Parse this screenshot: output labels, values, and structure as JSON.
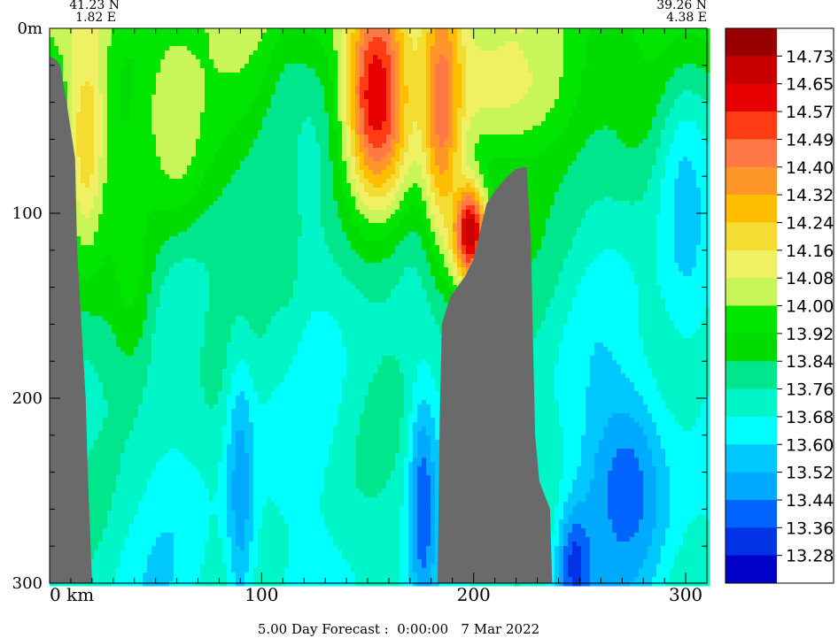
{
  "chart_data": {
    "type": "heatmap",
    "title": "",
    "xlabel": "",
    "ylabel": "",
    "xlim": [
      0,
      310
    ],
    "ylim": [
      300,
      0
    ],
    "x_ticks": [
      0,
      100,
      200,
      300
    ],
    "x_tick_labels": [
      "0 km",
      "100",
      "200",
      "300"
    ],
    "y_ticks": [
      0,
      100,
      200,
      300
    ],
    "y_tick_labels": [
      "0m",
      "100",
      "200",
      "300"
    ],
    "x_minor_step": 10,
    "y_minor_step": 20,
    "left_end": {
      "lat": "41.23 N",
      "lon": "1.82 E"
    },
    "right_end": {
      "lat": "39.26 N",
      "lon": "4.38 E"
    },
    "footer": "5.00 Day Forecast :  0:00:00   7 Mar 2022",
    "colorbar": {
      "labels": [
        "14.73",
        "14.65",
        "14.57",
        "14.49",
        "14.40",
        "14.32",
        "14.24",
        "14.16",
        "14.08",
        "14.00",
        "13.92",
        "13.84",
        "13.76",
        "13.68",
        "13.60",
        "13.52",
        "13.44",
        "13.36",
        "13.28"
      ],
      "colors": [
        "#990000",
        "#c80000",
        "#e60000",
        "#ff3c14",
        "#ff7846",
        "#ff9628",
        "#ffbe00",
        "#f5dc32",
        "#f0f064",
        "#c8f55a",
        "#00e600",
        "#00dc00",
        "#00e68c",
        "#00f5c8",
        "#00ffff",
        "#00c8ff",
        "#00aaff",
        "#0064ff",
        "#0032e6",
        "#0000c8"
      ]
    },
    "land_color": "#6a6a6a",
    "land_left": [
      [
        0,
        15
      ],
      [
        3,
        17
      ],
      [
        5,
        20
      ],
      [
        8,
        40
      ],
      [
        12,
        70
      ],
      [
        13,
        120
      ],
      [
        15,
        160
      ],
      [
        17,
        200
      ],
      [
        18,
        240
      ],
      [
        19,
        270
      ],
      [
        20,
        300
      ]
    ],
    "land_right": [
      [
        183,
        300
      ],
      [
        184,
        210
      ],
      [
        185,
        160
      ],
      [
        189,
        145
      ],
      [
        196,
        134
      ],
      [
        200,
        125
      ],
      [
        204,
        105
      ],
      [
        206,
        95
      ],
      [
        210,
        88
      ],
      [
        216,
        80
      ],
      [
        220,
        76
      ],
      [
        225,
        75
      ],
      [
        227,
        115
      ],
      [
        228,
        170
      ],
      [
        229,
        220
      ],
      [
        231,
        245
      ],
      [
        236,
        260
      ],
      [
        237,
        300
      ]
    ],
    "hotspots": [
      {
        "x": 155,
        "y": 35,
        "v": 14.72,
        "sx": 15,
        "sy": 55
      },
      {
        "x": 198,
        "y": 110,
        "v": 14.75,
        "sx": 9,
        "sy": 30
      },
      {
        "x": 212,
        "y": 30,
        "v": 14.1,
        "sx": 40,
        "sy": 40
      },
      {
        "x": 185,
        "y": 40,
        "v": 14.45,
        "sx": 10,
        "sy": 80
      },
      {
        "x": 18,
        "y": 60,
        "v": 14.25,
        "sx": 10,
        "sy": 60
      },
      {
        "x": 58,
        "y": 50,
        "v": 14.08,
        "sx": 18,
        "sy": 60
      },
      {
        "x": 112,
        "y": 90,
        "v": 13.78,
        "sx": 8,
        "sy": 80
      },
      {
        "x": 90,
        "y": 250,
        "v": 13.45,
        "sx": 7,
        "sy": 70
      },
      {
        "x": 176,
        "y": 260,
        "v": 13.36,
        "sx": 6,
        "sy": 60
      },
      {
        "x": 272,
        "y": 250,
        "v": 13.38,
        "sx": 20,
        "sy": 60
      },
      {
        "x": 300,
        "y": 100,
        "v": 13.55,
        "sx": 15,
        "sy": 80
      },
      {
        "x": 248,
        "y": 290,
        "v": 13.3,
        "sx": 8,
        "sy": 30
      },
      {
        "x": 38,
        "y": 120,
        "v": 13.95,
        "sx": 14,
        "sy": 80
      }
    ]
  }
}
